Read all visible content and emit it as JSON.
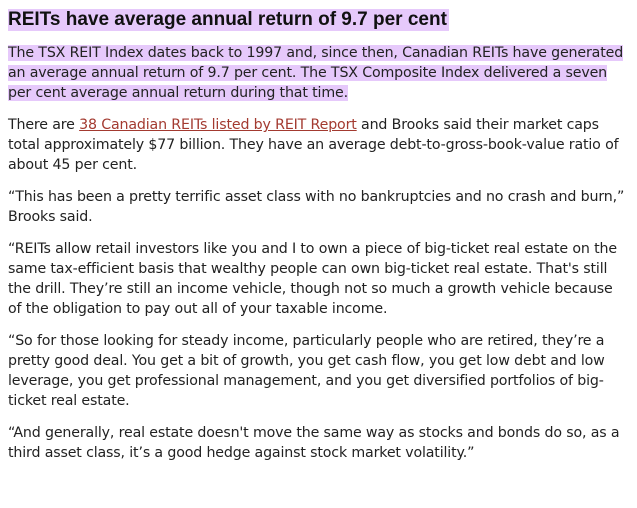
{
  "article": {
    "headline": "REITs have average annual return of 9.7 per cent",
    "paragraphs": {
      "p1": "The TSX REIT Index dates back to 1997 and, since then, Canadian REITs have generated an average annual return of 9.7 per cent. The TSX Composite Index delivered a seven per cent average annual return during that time.",
      "p2_before": "There are ",
      "p2_link": "38 Canadian REITs listed by REIT Report",
      "p2_after": " and Brooks said their market caps total approximately $77 billion. They have an average debt-to-gross-book-value ratio of about 45 per cent.",
      "p3": "“This has been a pretty terrific asset class with no bankruptcies and no crash and burn,” Brooks said.",
      "p4": "“REITs allow retail investors like you and I to own a piece of big-ticket real estate on the same tax-efficient basis that wealthy people can own big-ticket real estate. That's still the drill. They’re still an income vehicle, though not so much a growth vehicle because of the obligation to pay out all of your taxable income.",
      "p5": "“So for those looking for steady income, particularly people who are retired, they’re a pretty good deal. You get a bit of growth, you get cash flow, you get low debt and low leverage, you get professional management, and you get diversified portfolios of big-ticket real estate.",
      "p6": "“And generally, real estate doesn't move the same way as stocks and bonds do so, as a third asset class, it’s a good hedge against stock market volatility.”"
    }
  },
  "colors": {
    "highlight": "#e6c9fb",
    "link": "#a33a30",
    "text": "#222222"
  }
}
